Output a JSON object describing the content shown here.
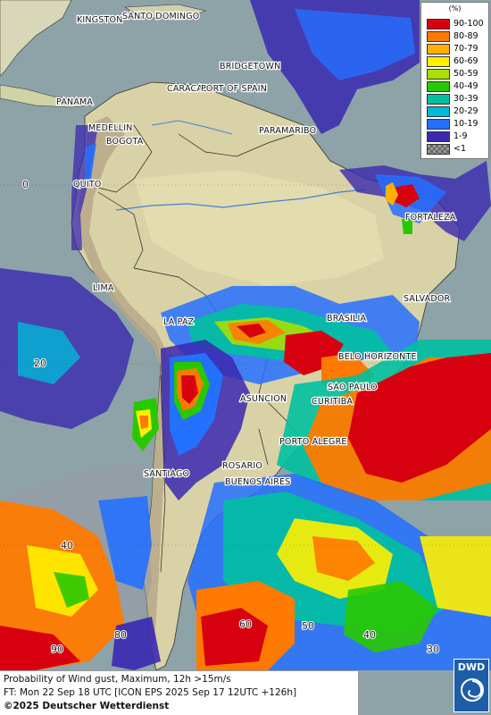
{
  "legend": {
    "unit": "(%)",
    "items": [
      {
        "label": "90-100",
        "color": "#d7000f"
      },
      {
        "label": "80-89",
        "color": "#ff7a00"
      },
      {
        "label": "70-79",
        "color": "#ffb000"
      },
      {
        "label": "60-69",
        "color": "#ffef00"
      },
      {
        "label": "50-59",
        "color": "#aadf00"
      },
      {
        "label": "40-49",
        "color": "#28c800"
      },
      {
        "label": "30-39",
        "color": "#00c0a0"
      },
      {
        "label": "20-29",
        "color": "#00b8d8"
      },
      {
        "label": "10-19",
        "color": "#2470ff"
      },
      {
        "label": "1-9",
        "color": "#3a28b0"
      },
      {
        "label": "<1",
        "color": "#9a9a9a"
      }
    ]
  },
  "cities": [
    {
      "name": "KINGSTON"
    },
    {
      "name": "SANTO DOMINGO"
    },
    {
      "name": "BRIDGETOWN"
    },
    {
      "name": "PANAMA"
    },
    {
      "name": "CARACAS"
    },
    {
      "name": "PORT OF SPAIN"
    },
    {
      "name": "MEDELLIN"
    },
    {
      "name": "PARAMARIBO"
    },
    {
      "name": "BOGOTA"
    },
    {
      "name": "QUITO"
    },
    {
      "name": "FORTALEZA"
    },
    {
      "name": "LIMA"
    },
    {
      "name": "SALVADOR"
    },
    {
      "name": "BRASILIA"
    },
    {
      "name": "LA PAZ"
    },
    {
      "name": "BELO HORIZONTE"
    },
    {
      "name": "SAO PAULO"
    },
    {
      "name": "ASUNCION"
    },
    {
      "name": "CURITIBA"
    },
    {
      "name": "PORTO ALEGRE"
    },
    {
      "name": "ROSARIO"
    },
    {
      "name": "SANTIAGO"
    },
    {
      "name": "BUENOS AIRES"
    }
  ],
  "grid_labels": [
    "0",
    "20",
    "40",
    "90",
    "80",
    "60",
    "50",
    "40",
    "30"
  ],
  "info": {
    "line1": "Probability of Wind gust, Maximum, 12h >15m/s",
    "line2": "FT: Mon 22 Sep 18 UTC [ICON EPS 2025 Sep 17 12UTC +126h]",
    "copyright": "©2025 Deutscher Wetterdienst"
  },
  "logo": {
    "text": "DWD"
  }
}
